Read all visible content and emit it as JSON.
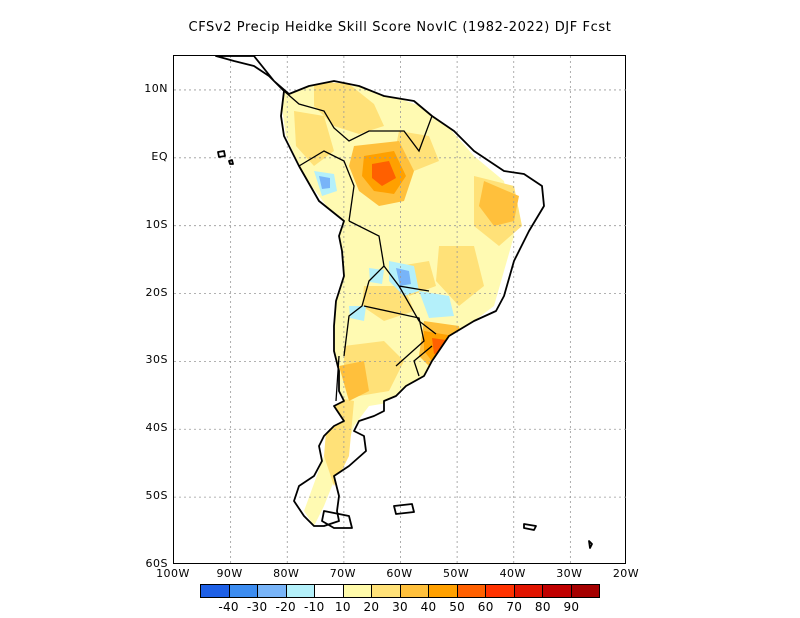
{
  "title": "CFSv2 Precip Heidke Skill Score NovIC (1982-2022) DJF Fcst",
  "map": {
    "lon_range": [
      -100,
      -20
    ],
    "lat_range": [
      -60,
      15
    ],
    "grid": true,
    "lat_ticks": [
      {
        "value": 10,
        "label": "10N"
      },
      {
        "value": 0,
        "label": "EQ"
      },
      {
        "value": -10,
        "label": "10S"
      },
      {
        "value": -20,
        "label": "20S"
      },
      {
        "value": -30,
        "label": "30S"
      },
      {
        "value": -40,
        "label": "40S"
      },
      {
        "value": -50,
        "label": "50S"
      },
      {
        "value": -60,
        "label": "60S"
      }
    ],
    "lon_ticks": [
      {
        "value": -100,
        "label": "100W"
      },
      {
        "value": -90,
        "label": "90W"
      },
      {
        "value": -80,
        "label": "80W"
      },
      {
        "value": -70,
        "label": "70W"
      },
      {
        "value": -60,
        "label": "60W"
      },
      {
        "value": -50,
        "label": "50W"
      },
      {
        "value": -40,
        "label": "40W"
      },
      {
        "value": -30,
        "label": "30W"
      },
      {
        "value": -20,
        "label": "20W"
      }
    ]
  },
  "colorbar": {
    "colors": [
      "#1e60e6",
      "#3c8cf0",
      "#78b4f8",
      "#b4f0fa",
      "#ffffff",
      "#fffaaa",
      "#ffe178",
      "#ffc03c",
      "#ffa000",
      "#ff6000",
      "#ff3200",
      "#e11400",
      "#c00000",
      "#a50000"
    ],
    "labels": [
      "-40",
      "-30",
      "-20",
      "-10",
      "10",
      "20",
      "30",
      "40",
      "50",
      "60",
      "70",
      "80",
      "90"
    ]
  },
  "skill_regions": [
    {
      "name": "central-amazon-high",
      "level": 60
    },
    {
      "name": "amazon-core-peak",
      "level": 70
    },
    {
      "name": "northeast-brazil",
      "level": 40
    },
    {
      "name": "southern-brazil-uruguay",
      "level": 50
    },
    {
      "name": "chaco-low",
      "level": -20
    },
    {
      "name": "ecuador-low",
      "level": -20
    },
    {
      "name": "patagonia-west",
      "level": 20
    }
  ]
}
